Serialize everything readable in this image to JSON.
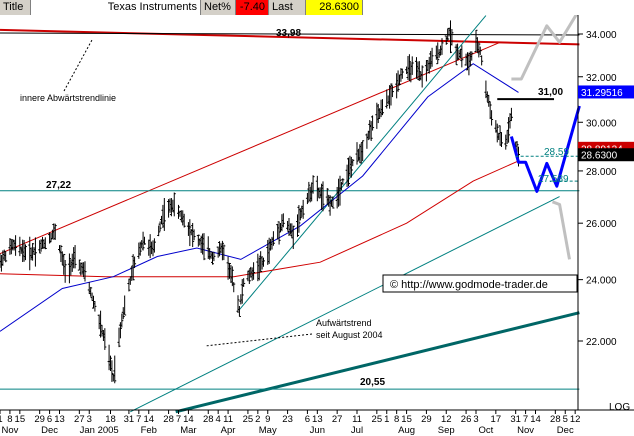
{
  "header": {
    "title_label": "Title",
    "instrument": "Texas Instruments",
    "net_pct_label": "Net%",
    "net_pct_value": "-7.40",
    "last_label": "Last",
    "last_value": "28.6300"
  },
  "chart_data": {
    "type": "line",
    "subtype": "ohlc-bars",
    "log_scale": true,
    "grid": false,
    "y_tick_labels": [
      "34.000",
      "32.000",
      "30.000",
      "28.000",
      "26.000",
      "24.000",
      "22.000"
    ],
    "y_ticks": [
      34,
      32,
      30,
      28,
      26,
      24,
      22
    ],
    "x_day_labels": [
      {
        "x": "2004-11-01",
        "text": "1"
      },
      {
        "x": "2004-11-08",
        "text": "8"
      },
      {
        "x": "2004-11-15",
        "text": "15"
      },
      {
        "x": "2004-11-29",
        "text": "29"
      },
      {
        "x": "2004-12-06",
        "text": "6"
      },
      {
        "x": "2004-12-13",
        "text": "13"
      },
      {
        "x": "2004-12-27",
        "text": "27"
      },
      {
        "x": "2005-01-03",
        "text": "3"
      },
      {
        "x": "2005-01-18",
        "text": "18"
      },
      {
        "x": "2005-01-31",
        "text": "31"
      },
      {
        "x": "2005-02-07",
        "text": "7"
      },
      {
        "x": "2005-02-14",
        "text": "14"
      },
      {
        "x": "2005-02-28",
        "text": "28"
      },
      {
        "x": "2005-03-07",
        "text": "7"
      },
      {
        "x": "2005-03-14",
        "text": "14"
      },
      {
        "x": "2005-03-28",
        "text": "28"
      },
      {
        "x": "2005-04-04",
        "text": "4"
      },
      {
        "x": "2005-04-11",
        "text": "11"
      },
      {
        "x": "2005-04-25",
        "text": "25"
      },
      {
        "x": "2005-05-02",
        "text": "2"
      },
      {
        "x": "2005-05-09",
        "text": "9"
      },
      {
        "x": "2005-05-23",
        "text": "23"
      },
      {
        "x": "2005-06-06",
        "text": "6"
      },
      {
        "x": "2005-06-13",
        "text": "13"
      },
      {
        "x": "2005-06-27",
        "text": "27"
      },
      {
        "x": "2005-07-11",
        "text": "11"
      },
      {
        "x": "2005-07-25",
        "text": "25"
      },
      {
        "x": "2005-08-01",
        "text": "1"
      },
      {
        "x": "2005-08-08",
        "text": "8"
      },
      {
        "x": "2005-08-15",
        "text": "15"
      },
      {
        "x": "2005-08-29",
        "text": "29"
      },
      {
        "x": "2005-09-12",
        "text": "12"
      },
      {
        "x": "2005-09-26",
        "text": "26"
      },
      {
        "x": "2005-10-03",
        "text": "3"
      },
      {
        "x": "2005-10-17",
        "text": "17"
      },
      {
        "x": "2005-10-31",
        "text": "31"
      },
      {
        "x": "2005-11-07",
        "text": "7"
      },
      {
        "x": "2005-11-14",
        "text": "14"
      },
      {
        "x": "2005-11-28",
        "text": "28"
      },
      {
        "x": "2005-12-05",
        "text": "5"
      },
      {
        "x": "2005-12-12",
        "text": "12"
      }
    ],
    "x_month_labels": [
      {
        "x": "2004-11-08",
        "text": "Nov"
      },
      {
        "x": "2004-12-06",
        "text": "Dec"
      },
      {
        "x": "2005-01-10",
        "text": "Jan 2005"
      },
      {
        "x": "2005-02-14",
        "text": "Feb"
      },
      {
        "x": "2005-03-14",
        "text": "Mar"
      },
      {
        "x": "2005-04-11",
        "text": "Apr"
      },
      {
        "x": "2005-05-09",
        "text": "May"
      },
      {
        "x": "2005-06-13",
        "text": "Jun"
      },
      {
        "x": "2005-07-11",
        "text": "Jul"
      },
      {
        "x": "2005-08-15",
        "text": "Aug"
      },
      {
        "x": "2005-09-12",
        "text": "Sep"
      },
      {
        "x": "2005-10-10",
        "text": "Oct"
      },
      {
        "x": "2005-11-07",
        "text": "Nov"
      },
      {
        "x": "2005-12-05",
        "text": "Dec"
      }
    ],
    "scale_label": "LOG",
    "price_path": [
      {
        "x": "2004-11-01",
        "y": 24.6
      },
      {
        "x": "2004-11-10",
        "y": 25.2
      },
      {
        "x": "2004-11-22",
        "y": 24.9
      },
      {
        "x": "2004-12-03",
        "y": 25.3
      },
      {
        "x": "2004-12-10",
        "y": 25.7
      },
      {
        "x": "2004-12-17",
        "y": 24.3
      },
      {
        "x": "2004-12-24",
        "y": 24.7
      },
      {
        "x": "2004-12-31",
        "y": 24.2
      },
      {
        "x": "2005-01-07",
        "y": 23.1
      },
      {
        "x": "2005-01-14",
        "y": 22.0
      },
      {
        "x": "2005-01-20",
        "y": 20.9
      },
      {
        "x": "2005-01-26",
        "y": 22.7
      },
      {
        "x": "2005-02-03",
        "y": 24.4
      },
      {
        "x": "2005-02-10",
        "y": 25.4
      },
      {
        "x": "2005-02-17",
        "y": 25.0
      },
      {
        "x": "2005-02-24",
        "y": 26.3
      },
      {
        "x": "2005-03-03",
        "y": 26.7
      },
      {
        "x": "2005-03-10",
        "y": 26.2
      },
      {
        "x": "2005-03-17",
        "y": 25.6
      },
      {
        "x": "2005-03-24",
        "y": 25.2
      },
      {
        "x": "2005-03-31",
        "y": 24.8
      },
      {
        "x": "2005-04-07",
        "y": 25.1
      },
      {
        "x": "2005-04-14",
        "y": 24.0
      },
      {
        "x": "2005-04-19",
        "y": 23.0
      },
      {
        "x": "2005-04-22",
        "y": 23.9
      },
      {
        "x": "2005-04-29",
        "y": 24.3
      },
      {
        "x": "2005-05-06",
        "y": 24.6
      },
      {
        "x": "2005-05-13",
        "y": 25.4
      },
      {
        "x": "2005-05-20",
        "y": 26.1
      },
      {
        "x": "2005-05-27",
        "y": 25.6
      },
      {
        "x": "2005-06-03",
        "y": 26.6
      },
      {
        "x": "2005-06-10",
        "y": 27.4
      },
      {
        "x": "2005-06-17",
        "y": 27.0
      },
      {
        "x": "2005-06-24",
        "y": 26.7
      },
      {
        "x": "2005-07-01",
        "y": 27.6
      },
      {
        "x": "2005-07-08",
        "y": 28.3
      },
      {
        "x": "2005-07-15",
        "y": 28.9
      },
      {
        "x": "2005-07-22",
        "y": 29.9
      },
      {
        "x": "2005-07-29",
        "y": 30.6
      },
      {
        "x": "2005-08-05",
        "y": 31.3
      },
      {
        "x": "2005-08-12",
        "y": 32.2
      },
      {
        "x": "2005-08-19",
        "y": 32.4
      },
      {
        "x": "2005-08-26",
        "y": 32.0
      },
      {
        "x": "2005-09-02",
        "y": 32.8
      },
      {
        "x": "2005-09-09",
        "y": 33.3
      },
      {
        "x": "2005-09-14",
        "y": 34.1
      },
      {
        "x": "2005-09-19",
        "y": 33.2
      },
      {
        "x": "2005-09-23",
        "y": 33.0
      },
      {
        "x": "2005-09-28",
        "y": 32.6
      },
      {
        "x": "2005-10-03",
        "y": 33.5
      },
      {
        "x": "2005-10-06",
        "y": 33.2
      },
      {
        "x": "2005-10-10",
        "y": 31.4
      },
      {
        "x": "2005-10-14",
        "y": 30.3
      },
      {
        "x": "2005-10-19",
        "y": 29.4
      },
      {
        "x": "2005-10-24",
        "y": 29.1
      },
      {
        "x": "2005-10-28",
        "y": 30.3
      },
      {
        "x": "2005-10-31",
        "y": 28.9
      },
      {
        "x": "2005-11-02",
        "y": 28.6
      }
    ],
    "series": [
      {
        "name": "MA200",
        "color": "#d00000",
        "values": [
          {
            "x": "2004-11-01",
            "y": 24.2
          },
          {
            "x": "2005-01-15",
            "y": 24.1
          },
          {
            "x": "2005-04-15",
            "y": 24.1
          },
          {
            "x": "2005-06-15",
            "y": 24.6
          },
          {
            "x": "2005-08-15",
            "y": 26.0
          },
          {
            "x": "2005-10-01",
            "y": 27.6
          },
          {
            "x": "2005-11-02",
            "y": 28.4
          }
        ]
      },
      {
        "name": "MA50",
        "color": "#0000cc",
        "values": [
          {
            "x": "2004-11-01",
            "y": 22.3
          },
          {
            "x": "2004-12-15",
            "y": 23.7
          },
          {
            "x": "2005-01-20",
            "y": 24.1
          },
          {
            "x": "2005-02-20",
            "y": 24.8
          },
          {
            "x": "2005-03-20",
            "y": 25.1
          },
          {
            "x": "2005-04-20",
            "y": 24.7
          },
          {
            "x": "2005-06-01",
            "y": 25.9
          },
          {
            "x": "2005-07-15",
            "y": 27.8
          },
          {
            "x": "2005-08-30",
            "y": 31.1
          },
          {
            "x": "2005-10-01",
            "y": 32.6
          },
          {
            "x": "2005-11-02",
            "y": 31.3
          }
        ]
      }
    ],
    "trendlines": [
      {
        "color": "#cc0000",
        "points": [
          {
            "x": "2004-11-01",
            "y": 24.9
          },
          {
            "x": "2005-10-20",
            "y": 33.6
          }
        ]
      },
      {
        "color": "#cc0000",
        "points": [
          {
            "x": "2004-11-01",
            "y": 34.2
          },
          {
            "x": "2005-12-15",
            "y": 33.5
          }
        ]
      },
      {
        "color": "#000000",
        "points": [
          {
            "x": "2004-11-01",
            "y": 34.05
          },
          {
            "x": "2005-12-15",
            "y": 33.95
          }
        ]
      },
      {
        "color": "#008080",
        "points": [
          {
            "x": "2005-04-19",
            "y": 23.0
          },
          {
            "x": "2005-10-10",
            "y": 34.9
          }
        ]
      },
      {
        "color": "#008080",
        "points": [
          {
            "x": "2005-02-01",
            "y": 19.9
          },
          {
            "x": "2005-12-01",
            "y": 27.0
          }
        ]
      },
      {
        "color": "#006666",
        "points": [
          {
            "x": "2005-03-05",
            "y": 19.9
          },
          {
            "x": "2005-12-15",
            "y": 22.9
          }
        ]
      },
      {
        "color": "#008080",
        "points": [
          {
            "x": "2004-11-01",
            "y": 27.22
          },
          {
            "x": "2005-12-15",
            "y": 27.22
          }
        ]
      },
      {
        "color": "#008080",
        "points": [
          {
            "x": "2004-11-01",
            "y": 20.55
          },
          {
            "x": "2005-12-15",
            "y": 20.55
          }
        ]
      }
    ],
    "projections": [
      {
        "color": "#0000ff",
        "points": [
          {
            "x": "2005-10-28",
            "y": 29.4
          },
          {
            "x": "2005-11-02",
            "y": 28.35
          },
          {
            "x": "2005-11-07",
            "y": 28.35
          },
          {
            "x": "2005-11-15",
            "y": 27.2
          },
          {
            "x": "2005-11-22",
            "y": 28.3
          },
          {
            "x": "2005-11-29",
            "y": 27.4
          },
          {
            "x": "2005-12-15",
            "y": 30.7
          }
        ]
      },
      {
        "color": "#c0c0c0",
        "points": [
          {
            "x": "2005-10-28",
            "y": 31.9
          },
          {
            "x": "2005-11-04",
            "y": 31.9
          },
          {
            "x": "2005-11-22",
            "y": 34.4
          },
          {
            "x": "2005-12-01",
            "y": 33.6
          },
          {
            "x": "2005-12-15",
            "y": 35.2
          }
        ]
      },
      {
        "color": "#c0c0c0",
        "points": [
          {
            "x": "2005-11-26",
            "y": 26.8
          },
          {
            "x": "2005-12-01",
            "y": 26.7
          },
          {
            "x": "2005-12-08",
            "y": 24.7
          }
        ]
      }
    ],
    "annotations": {
      "level_3398": "33,98",
      "level_3100": "31,00",
      "level_2859": "28.59",
      "level_2722": "27,22",
      "level_27589": "27.589",
      "level_2055": "20,55",
      "label_downtrend": "innere Abwärtstrendlinie",
      "label_uptrend_1": "Aufwärtstrend",
      "label_uptrend_2": "seit August 2004",
      "copyright": "© http://www.godmode-trader.de"
    },
    "right_tags": [
      {
        "text": "31.29516",
        "bg": "#0000ff",
        "fg": "#ffffff",
        "y": 31.29516
      },
      {
        "text": "28.89134",
        "bg": "#cc0000",
        "fg": "#ffffff",
        "y": 28.89134
      },
      {
        "text": "28.6300",
        "bg": "#000000",
        "fg": "#ffffff",
        "y": 28.63
      }
    ]
  }
}
